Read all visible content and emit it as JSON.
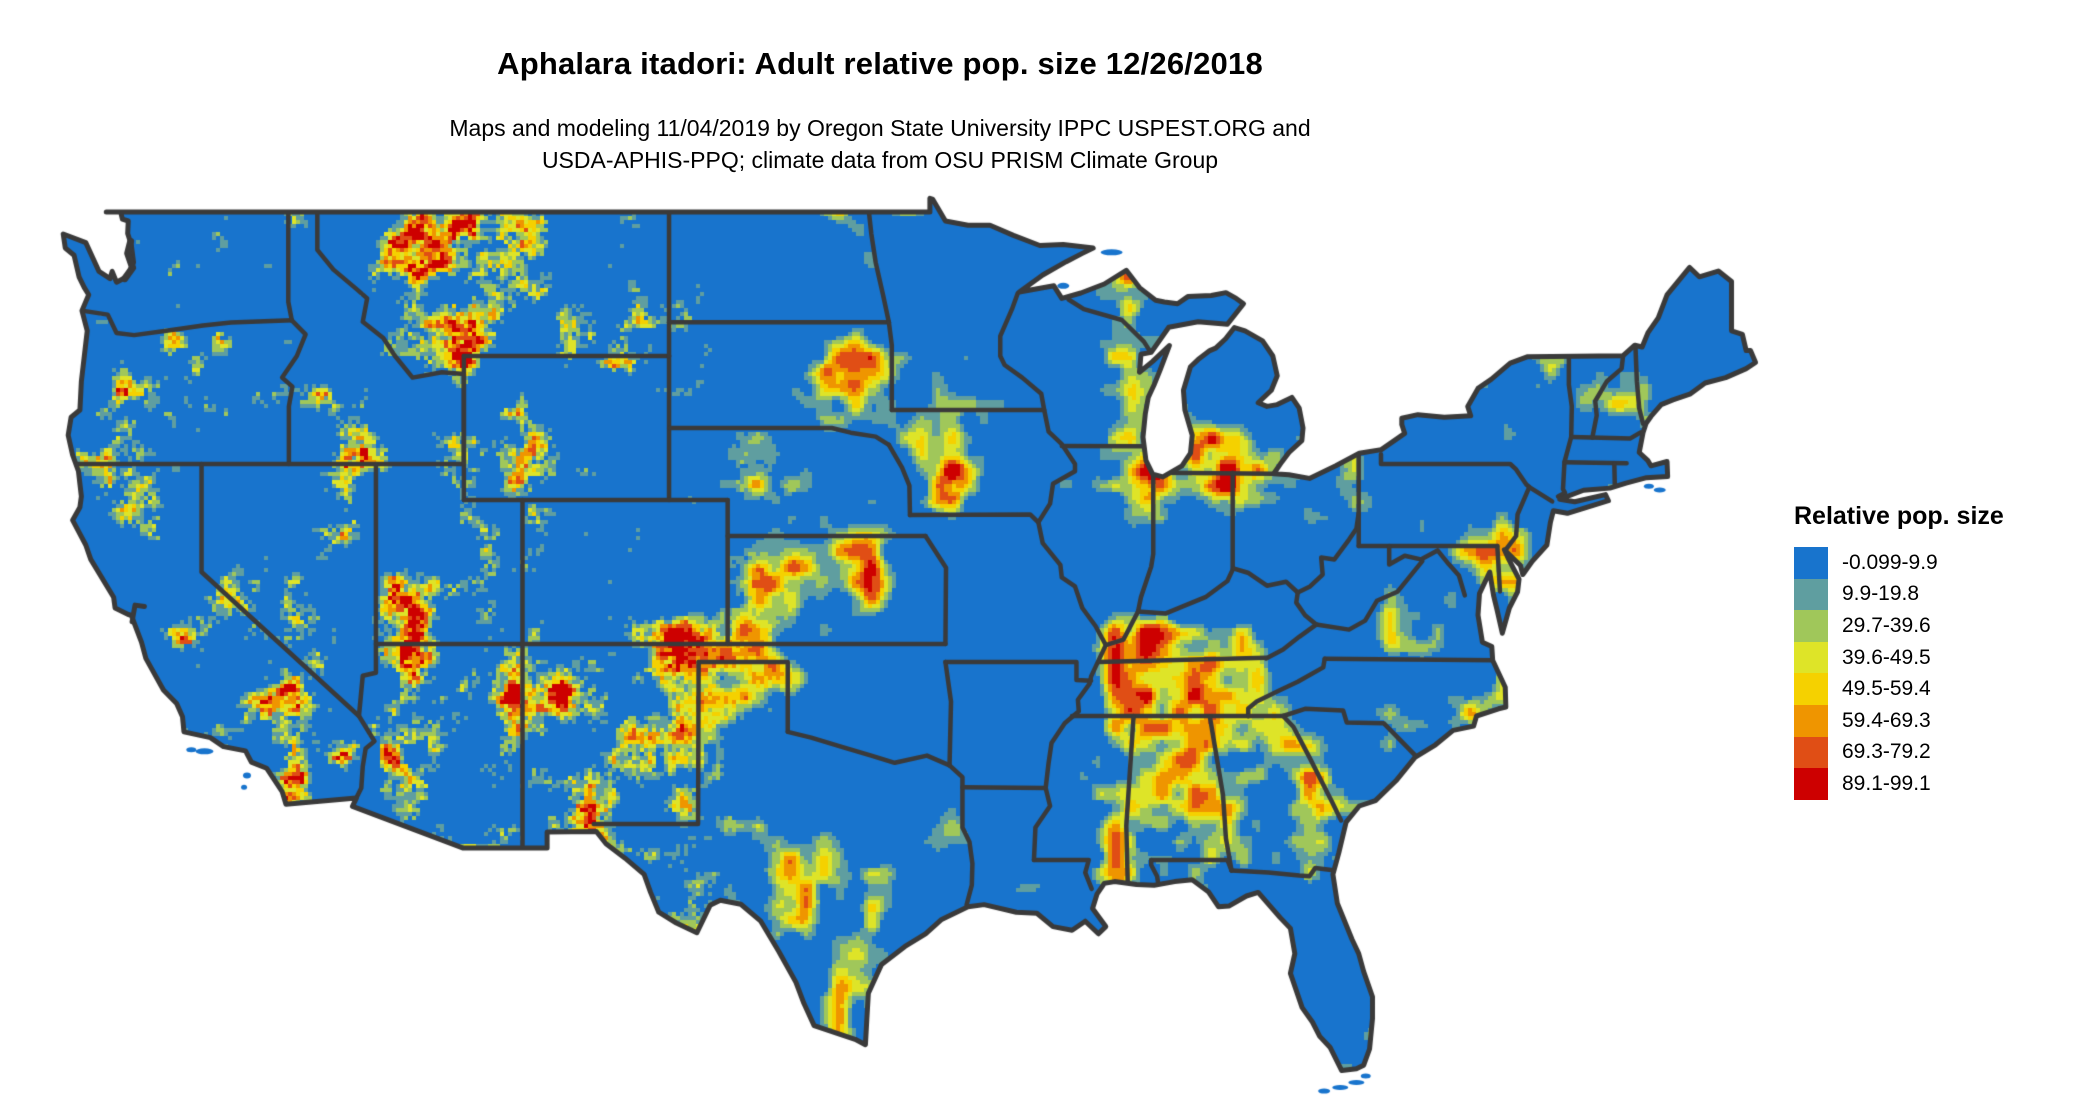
{
  "title": "Aphalara itadori: Adult relative pop. size 12/26/2018",
  "subtitle_line1": "Maps and modeling 11/04/2019 by Oregon State University IPPC USPEST.ORG and",
  "subtitle_line2": "USDA-APHIS-PPQ; climate data from OSU PRISM Climate Group",
  "legend": {
    "title": "Relative pop. size",
    "items": [
      {
        "label": "-0.099-9.9",
        "color": "#1874CD"
      },
      {
        "label": "9.9-19.8",
        "color": "#5F9EA0"
      },
      {
        "label": "29.7-39.6",
        "color": "#A0C75A"
      },
      {
        "label": "39.6-49.5",
        "color": "#DEE428"
      },
      {
        "label": "49.5-59.4",
        "color": "#F5D100"
      },
      {
        "label": "59.4-69.3",
        "color": "#EF9500"
      },
      {
        "label": "69.3-79.2",
        "color": "#E04E15"
      },
      {
        "label": "89.1-99.1",
        "color": "#CD0000"
      }
    ]
  },
  "map": {
    "region": "Continental United States",
    "background": "#FFFFFF",
    "water_and_canada": "#FFFFFF",
    "base_fill": "#1874CD",
    "boundary_color": "#3A3A3A"
  }
}
